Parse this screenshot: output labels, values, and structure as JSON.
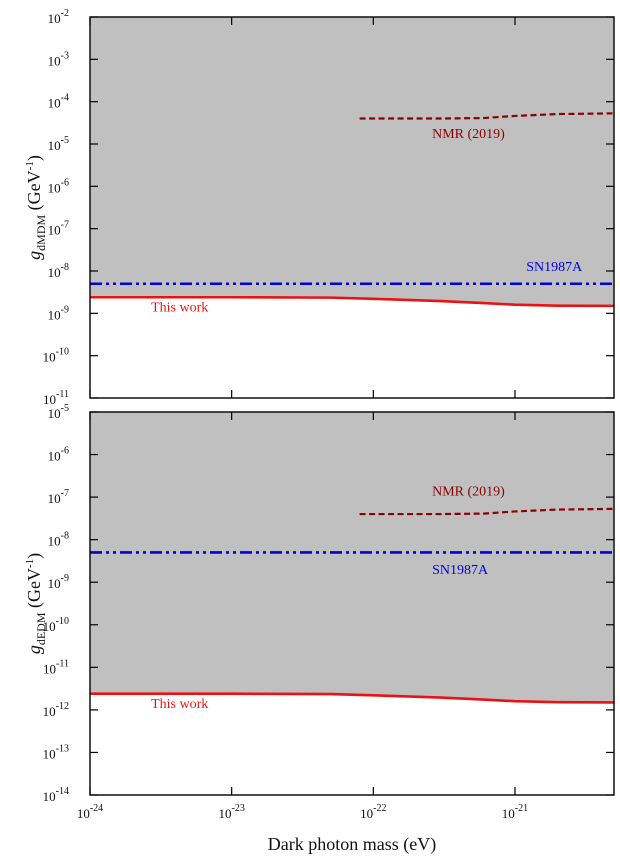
{
  "chart_data": [
    {
      "type": "line",
      "panel": "top",
      "xscale": "log",
      "yscale": "log",
      "xlim": [
        1e-24,
        5e-21
      ],
      "ylim": [
        1e-11,
        0.01
      ],
      "xticks": [
        1e-24,
        1e-23,
        1e-22,
        1e-21
      ],
      "yticks": [
        1e-11,
        1e-10,
        1e-09,
        1e-08,
        1e-07,
        1e-06,
        1e-05,
        0.0001,
        0.001,
        0.01
      ],
      "ylabel": {
        "symbol": "g",
        "sub": "dMDM",
        "unit_pre": " (GeV",
        "unit_sup": "-1",
        "unit_post": ")"
      },
      "shaded_region": {
        "description": "excluded",
        "color": "#c0c0c0",
        "lower_boundary_series": "This work"
      },
      "series": [
        {
          "name": "NMR (2019)",
          "color": "#8b0000",
          "style": "dashed",
          "x": [
            8e-23,
            1.5e-22,
            3e-22,
            6e-22,
            1e-21,
            2e-21,
            5e-21
          ],
          "y": [
            4e-05,
            4e-05,
            4e-05,
            4.1e-05,
            4.6e-05,
            5.1e-05,
            5.3e-05
          ]
        },
        {
          "name": "SN1987A",
          "color": "#0000e0",
          "style": "dashdotdot",
          "x": [
            1e-24,
            5e-21
          ],
          "y": [
            5e-09,
            5e-09
          ]
        },
        {
          "name": "This work",
          "color": "#ee1111",
          "style": "solid",
          "x": [
            1e-24,
            1e-23,
            5e-23,
            1e-22,
            3e-22,
            6e-22,
            1e-21,
            2e-21,
            5e-21
          ],
          "y": [
            2.4e-09,
            2.4e-09,
            2.35e-09,
            2.2e-09,
            1.95e-09,
            1.75e-09,
            1.6e-09,
            1.52e-09,
            1.5e-09
          ]
        }
      ],
      "annotations": [
        {
          "text": "NMR (2019)",
          "series": "NMR (2019)",
          "x": 2.6e-22,
          "y": 1.4e-05
        },
        {
          "text": "SN1987A",
          "series": "SN1987A",
          "x": 1.2e-21,
          "y": 1e-08
        },
        {
          "text": "This work",
          "series": "This work",
          "x": 2.7e-24,
          "y": 1.1e-09
        }
      ]
    },
    {
      "type": "line",
      "panel": "bottom",
      "xscale": "log",
      "yscale": "log",
      "xlim": [
        1e-24,
        5e-21
      ],
      "ylim": [
        1e-14,
        1e-05
      ],
      "xticks": [
        1e-24,
        1e-23,
        1e-22,
        1e-21
      ],
      "yticks": [
        1e-14,
        1e-13,
        1e-12,
        1e-11,
        1e-10,
        1e-09,
        1e-08,
        1e-07,
        1e-06,
        1e-05
      ],
      "xlabel": "Dark photon mass (eV)",
      "ylabel": {
        "symbol": "g",
        "sub": "dEDM",
        "unit_pre": " (GeV",
        "unit_sup": "-1",
        "unit_post": ")"
      },
      "shaded_region": {
        "description": "excluded",
        "color": "#c0c0c0",
        "lower_boundary_series": "This work"
      },
      "series": [
        {
          "name": "NMR (2019)",
          "color": "#8b0000",
          "style": "dashed",
          "x": [
            8e-23,
            1.5e-22,
            3e-22,
            6e-22,
            1e-21,
            2e-21,
            5e-21
          ],
          "y": [
            4e-08,
            4e-08,
            4e-08,
            4.1e-08,
            4.6e-08,
            5.1e-08,
            5.3e-08
          ]
        },
        {
          "name": "SN1987A",
          "color": "#0000e0",
          "style": "dashdotdot",
          "x": [
            1e-24,
            5e-21
          ],
          "y": [
            5e-09,
            5e-09
          ]
        },
        {
          "name": "This work",
          "color": "#ee1111",
          "style": "solid",
          "x": [
            1e-24,
            1e-23,
            5e-23,
            1e-22,
            3e-22,
            6e-22,
            1e-21,
            2e-21,
            5e-21
          ],
          "y": [
            2.4e-12,
            2.4e-12,
            2.35e-12,
            2.2e-12,
            1.95e-12,
            1.75e-12,
            1.6e-12,
            1.52e-12,
            1.5e-12
          ]
        }
      ],
      "annotations": [
        {
          "text": "NMR (2019)",
          "series": "NMR (2019)",
          "x": 2.6e-22,
          "y": 1.1e-07
        },
        {
          "text": "SN1987A",
          "series": "SN1987A",
          "x": 2.6e-22,
          "y": 1.55e-09
        },
        {
          "text": "This work",
          "series": "This work",
          "x": 2.7e-24,
          "y": 1.1e-12
        }
      ]
    }
  ]
}
